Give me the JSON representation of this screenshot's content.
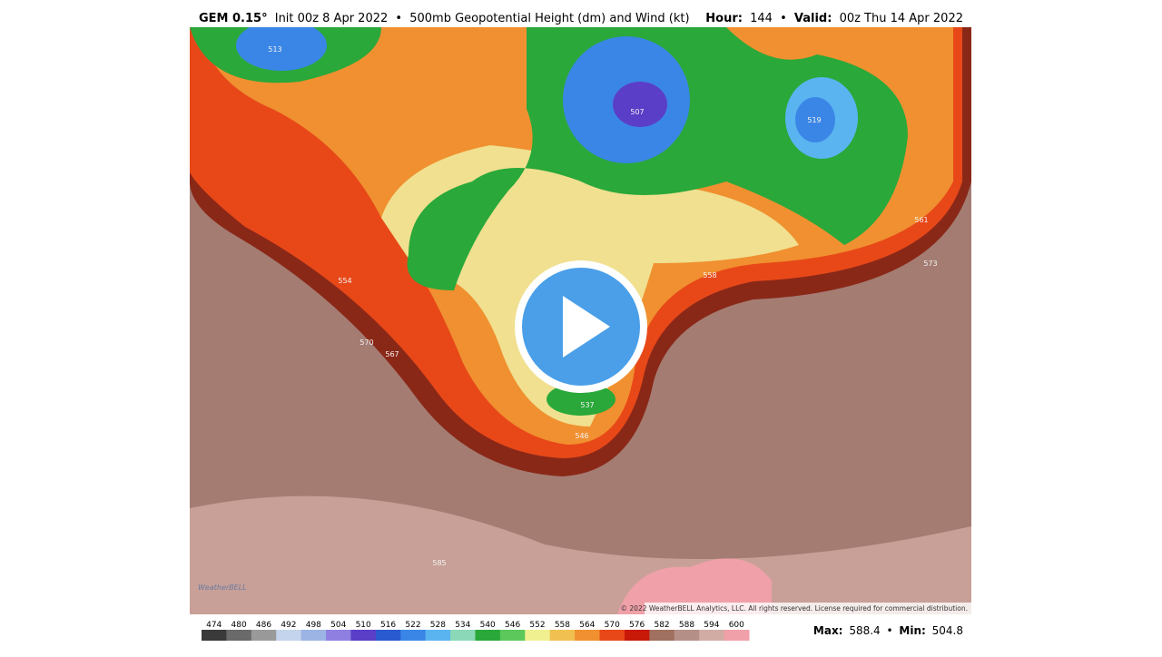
{
  "header": {
    "model": "GEM 0.15°",
    "init": "Init 00z 8 Apr 2022",
    "separator": "•",
    "field": "500mb Geopotential Height (dm) and Wind (kt)",
    "hour_label": "Hour:",
    "hour": "144",
    "valid_label": "Valid:",
    "valid": "00z Thu 14 Apr 2022"
  },
  "colorbar": {
    "ticks": [
      474,
      480,
      486,
      492,
      498,
      504,
      510,
      516,
      522,
      528,
      534,
      540,
      546,
      552,
      558,
      564,
      570,
      576,
      582,
      588,
      594,
      600
    ],
    "colors": [
      "#3a3a3a",
      "#6a6a6a",
      "#9a9a9a",
      "#c4d4ec",
      "#9cb4e4",
      "#8f7fe0",
      "#5a3ec8",
      "#2a5ad0",
      "#3a86e6",
      "#5ab4f0",
      "#8ad8b8",
      "#2aa83a",
      "#5cc85c",
      "#f0f090",
      "#f0c050",
      "#f09030",
      "#e84818",
      "#c81808",
      "#a07060",
      "#b49088",
      "#d0aca4",
      "#f0a0a8"
    ]
  },
  "stats": {
    "max_label": "Max:",
    "max": "588.4",
    "min_label": "Min:",
    "min": "504.8"
  },
  "copyright": "© 2022 WeatherBELL Analytics, LLC. All rights reserved. License required for commercial distribution.",
  "logo": "WeatherBELL",
  "contour_labels": [
    "513",
    "507",
    "519",
    "554",
    "570",
    "567",
    "537",
    "546",
    "558",
    "561",
    "573",
    "585"
  ]
}
